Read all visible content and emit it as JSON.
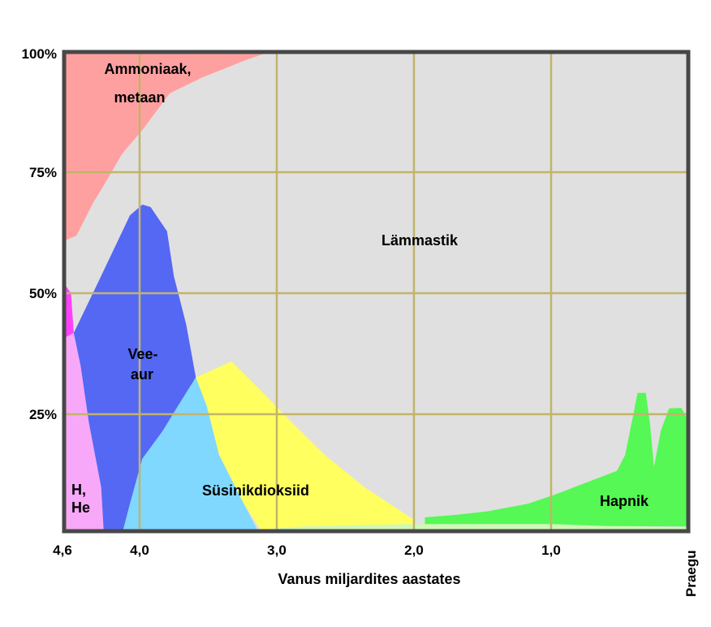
{
  "chart_data": {
    "type": "area",
    "title": "",
    "xlabel": "Vanus miljardites aastates",
    "ylabel": "",
    "x_reversed": true,
    "xlim": [
      4.6,
      0
    ],
    "ylim": [
      0,
      100
    ],
    "grid": true,
    "x_ticks": [
      {
        "value": 4.6,
        "label": "4,6"
      },
      {
        "value": 4.0,
        "label": "4,0"
      },
      {
        "value": 3.0,
        "label": "3,0"
      },
      {
        "value": 2.0,
        "label": "2,0"
      },
      {
        "value": 1.0,
        "label": "1,0"
      },
      {
        "value": 0,
        "label": "Praegu"
      }
    ],
    "y_ticks": [
      {
        "value": 100,
        "label": "100%"
      },
      {
        "value": 75,
        "label": "75%"
      },
      {
        "value": 50,
        "label": "50%"
      },
      {
        "value": 25,
        "label": "25%"
      }
    ],
    "background_region": {
      "name": "Lämmastik",
      "color": "#e0e0e0"
    },
    "series": [
      {
        "name": "Ammoniaak, metaan",
        "color": "#ffa0a0",
        "polygon": [
          [
            4.6,
            100
          ],
          [
            3.04,
            100
          ],
          [
            3.24,
            98
          ],
          [
            3.54,
            94.6
          ],
          [
            3.78,
            91.3
          ],
          [
            3.98,
            83.7
          ],
          [
            4.13,
            78.7
          ],
          [
            4.25,
            72.8
          ],
          [
            4.34,
            68.6
          ],
          [
            4.46,
            61.9
          ],
          [
            4.6,
            60.2
          ]
        ]
      },
      {
        "name": "",
        "color": "#ff40ff",
        "polygon": [
          [
            4.6,
            54
          ],
          [
            4.5,
            50
          ],
          [
            4.48,
            41.8
          ],
          [
            4.6,
            40
          ]
        ]
      },
      {
        "name": "H, He",
        "color": "#f8a8f8",
        "polygon": [
          [
            4.6,
            40
          ],
          [
            4.48,
            41.8
          ],
          [
            4.43,
            35
          ],
          [
            4.37,
            23.3
          ],
          [
            4.28,
            9.9
          ],
          [
            4.26,
            0
          ],
          [
            4.6,
            0
          ]
        ]
      },
      {
        "name": "Vee- aur",
        "color": "#5468f4",
        "polygon": [
          [
            4.48,
            41.8
          ],
          [
            4.31,
            51.8
          ],
          [
            4.07,
            66.1
          ],
          [
            3.98,
            68.3
          ],
          [
            3.92,
            67.8
          ],
          [
            3.8,
            62.8
          ],
          [
            3.75,
            53.5
          ],
          [
            3.66,
            43.5
          ],
          [
            3.59,
            32.6
          ],
          [
            3.72,
            26.7
          ],
          [
            3.83,
            21.6
          ],
          [
            3.98,
            15.8
          ],
          [
            4.07,
            6.5
          ],
          [
            4.13,
            0
          ],
          [
            4.26,
            0
          ],
          [
            4.28,
            9.9
          ],
          [
            4.37,
            23.3
          ],
          [
            4.43,
            35
          ]
        ]
      },
      {
        "name": "",
        "color": "#80d8ff",
        "polygon": [
          [
            4.13,
            0
          ],
          [
            4.07,
            6.5
          ],
          [
            3.98,
            15.8
          ],
          [
            3.83,
            21.6
          ],
          [
            3.72,
            26.7
          ],
          [
            3.59,
            32.6
          ],
          [
            3.51,
            26.7
          ],
          [
            3.42,
            16.6
          ],
          [
            3.24,
            6.5
          ],
          [
            3.12,
            0
          ]
        ]
      },
      {
        "name": "Süsinikdioksiid",
        "color": "#ffff60",
        "polygon": [
          [
            3.59,
            32.6
          ],
          [
            3.33,
            35.9
          ],
          [
            3.12,
            30
          ],
          [
            2.89,
            23.3
          ],
          [
            2.65,
            16.6
          ],
          [
            2.36,
            9.9
          ],
          [
            2.0,
            3.2
          ],
          [
            2.0,
            2.3
          ],
          [
            2.8,
            1.8
          ],
          [
            3.12,
            1.2
          ],
          [
            3.24,
            6.5
          ],
          [
            3.42,
            16.6
          ],
          [
            3.51,
            26.7
          ]
        ]
      },
      {
        "name": "",
        "color": "#d0f8b8",
        "polygon": [
          [
            3.12,
            0
          ],
          [
            3.12,
            1.2
          ],
          [
            2.8,
            1.8
          ],
          [
            2.0,
            2.3
          ],
          [
            1.0,
            2.3
          ],
          [
            0,
            1.5
          ],
          [
            0,
            0
          ]
        ]
      },
      {
        "name": "Hapnik",
        "color": "#55f855",
        "polygon": [
          [
            1.92,
            3.7
          ],
          [
            1.7,
            4.2
          ],
          [
            1.47,
            4.9
          ],
          [
            1.17,
            6.5
          ],
          [
            0.99,
            8.2
          ],
          [
            0.76,
            10.7
          ],
          [
            0.52,
            13.3
          ],
          [
            0.46,
            16.6
          ],
          [
            0.4,
            25
          ],
          [
            0.37,
            29.4
          ],
          [
            0.31,
            29.4
          ],
          [
            0.28,
            23.3
          ],
          [
            0.25,
            14.1
          ],
          [
            0.2,
            21.6
          ],
          [
            0.14,
            26.2
          ],
          [
            0.05,
            26.3
          ],
          [
            0.01,
            24.2
          ],
          [
            0.01,
            1.8
          ],
          [
            0.6,
            1.9
          ],
          [
            1.0,
            2.3
          ],
          [
            1.92,
            2.3
          ]
        ]
      }
    ],
    "colors": {
      "grid": "#c2b46a",
      "frame": "#474747"
    }
  }
}
